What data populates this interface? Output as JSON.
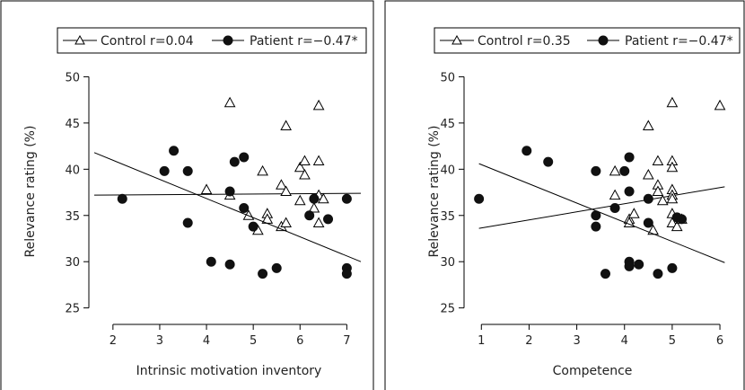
{
  "chart_data": [
    {
      "type": "scatter",
      "xlabel": "Intrinsic motivation inventory",
      "ylabel": "Relevance rating (%)",
      "xlim": [
        1.6,
        7.3
      ],
      "ylim": [
        23.8,
        51.5
      ],
      "xticks": [
        2,
        3,
        4,
        5,
        6,
        7
      ],
      "yticks": [
        25,
        30,
        35,
        40,
        45,
        50
      ],
      "legend_position": "top",
      "series": [
        {
          "name": "Control r=0.04",
          "marker": "open-triangle",
          "points": [
            [
              4.0,
              37.8
            ],
            [
              4.5,
              47.2
            ],
            [
              4.5,
              37.2
            ],
            [
              4.9,
              35.0
            ],
            [
              5.1,
              33.4
            ],
            [
              5.2,
              39.8
            ],
            [
              5.3,
              35.2
            ],
            [
              5.3,
              34.6
            ],
            [
              5.6,
              38.3
            ],
            [
              5.6,
              33.8
            ],
            [
              5.7,
              44.7
            ],
            [
              5.7,
              37.6
            ],
            [
              5.7,
              34.2
            ],
            [
              6.0,
              40.2
            ],
            [
              6.0,
              36.6
            ],
            [
              6.1,
              40.9
            ],
            [
              6.1,
              39.4
            ],
            [
              6.3,
              35.8
            ],
            [
              6.4,
              40.9
            ],
            [
              6.4,
              46.9
            ],
            [
              6.4,
              37.2
            ],
            [
              6.4,
              34.2
            ],
            [
              6.5,
              36.8
            ]
          ],
          "fit_line": [
            [
              1.6,
              37.2
            ],
            [
              7.3,
              37.4
            ]
          ]
        },
        {
          "name": "Patient r=−0.47*",
          "marker": "filled-circle",
          "points": [
            [
              2.2,
              36.8
            ],
            [
              3.1,
              39.8
            ],
            [
              3.3,
              42.0
            ],
            [
              3.6,
              39.8
            ],
            [
              3.6,
              34.2
            ],
            [
              4.1,
              30.0
            ],
            [
              4.5,
              37.6
            ],
            [
              4.5,
              29.7
            ],
            [
              4.6,
              40.8
            ],
            [
              4.8,
              41.3
            ],
            [
              4.8,
              35.8
            ],
            [
              5.0,
              33.8
            ],
            [
              5.2,
              28.7
            ],
            [
              5.5,
              29.3
            ],
            [
              6.2,
              35.0
            ],
            [
              6.3,
              36.8
            ],
            [
              6.6,
              34.6
            ],
            [
              7.0,
              36.8
            ],
            [
              7.0,
              29.3
            ],
            [
              7.0,
              28.7
            ]
          ],
          "fit_line": [
            [
              1.6,
              41.8
            ],
            [
              7.3,
              30.0
            ]
          ]
        }
      ]
    },
    {
      "type": "scatter",
      "xlabel": "Competence",
      "ylabel": "Relevance rating (%)",
      "xlim": [
        0.75,
        6.3
      ],
      "ylim": [
        23.8,
        51.5
      ],
      "xticks": [
        1,
        2,
        3,
        4,
        5,
        6
      ],
      "yticks": [
        25,
        30,
        35,
        40,
        45,
        50
      ],
      "legend_position": "top",
      "series": [
        {
          "name": "Control r=0.35",
          "marker": "open-triangle",
          "points": [
            [
              3.8,
              39.8
            ],
            [
              3.8,
              37.2
            ],
            [
              4.1,
              34.6
            ],
            [
              4.1,
              34.2
            ],
            [
              4.2,
              35.2
            ],
            [
              4.5,
              44.7
            ],
            [
              4.5,
              39.4
            ],
            [
              4.6,
              33.4
            ],
            [
              4.7,
              40.9
            ],
            [
              4.7,
              38.3
            ],
            [
              4.7,
              37.6
            ],
            [
              4.8,
              36.6
            ],
            [
              5.0,
              40.9
            ],
            [
              5.0,
              40.2
            ],
            [
              5.0,
              37.8
            ],
            [
              5.0,
              37.2
            ],
            [
              5.0,
              36.8
            ],
            [
              5.0,
              35.2
            ],
            [
              5.0,
              34.2
            ],
            [
              5.0,
              47.2
            ],
            [
              5.1,
              33.8
            ],
            [
              5.2,
              34.6
            ],
            [
              6.0,
              46.9
            ]
          ],
          "fit_line": [
            [
              0.95,
              33.6
            ],
            [
              6.1,
              38.1
            ]
          ]
        },
        {
          "name": "Patient r=−0.47*",
          "marker": "filled-circle",
          "points": [
            [
              0.95,
              36.8
            ],
            [
              1.95,
              42.0
            ],
            [
              2.4,
              40.8
            ],
            [
              3.4,
              39.8
            ],
            [
              3.4,
              35.0
            ],
            [
              3.4,
              33.8
            ],
            [
              3.6,
              28.7
            ],
            [
              3.8,
              35.8
            ],
            [
              4.0,
              39.8
            ],
            [
              4.1,
              41.3
            ],
            [
              4.1,
              37.6
            ],
            [
              4.1,
              30.0
            ],
            [
              4.1,
              29.5
            ],
            [
              4.3,
              29.7
            ],
            [
              4.5,
              36.8
            ],
            [
              4.5,
              34.2
            ],
            [
              4.7,
              28.7
            ],
            [
              5.0,
              29.3
            ],
            [
              5.2,
              34.6
            ],
            [
              5.1,
              34.8
            ]
          ],
          "fit_line": [
            [
              0.95,
              40.6
            ],
            [
              6.1,
              29.9
            ]
          ]
        }
      ]
    }
  ]
}
